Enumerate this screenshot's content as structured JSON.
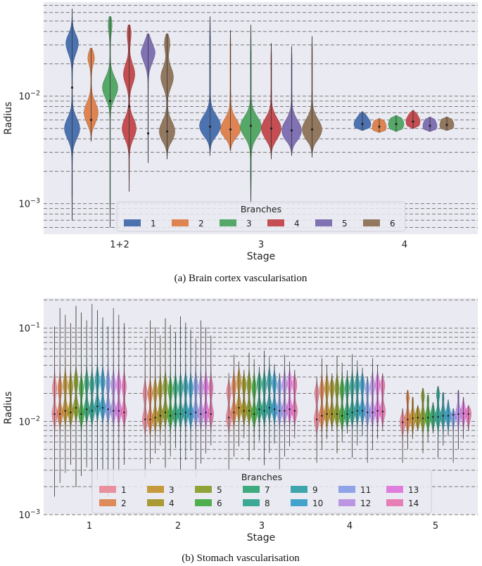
{
  "chart_data": [
    {
      "type": "violin",
      "caption": "(a) Brain cortex vascularisation",
      "xlabel": "Stage",
      "ylabel": "Radius",
      "yscale": "log",
      "ylim": [
        0.00052,
        0.075
      ],
      "yticks": [
        {
          "value": 0.001,
          "base": "10",
          "exp": "−3"
        },
        {
          "value": 0.01,
          "base": "10",
          "exp": "−2"
        }
      ],
      "grid": "horizontal-dashed",
      "categories": [
        "1+2",
        "3",
        "4"
      ],
      "legend": {
        "title": "Branches",
        "placement": "lower-center",
        "columns": 6
      },
      "series": [
        {
          "name": "1",
          "color": "#4c72b0",
          "values": [
            {
              "median": 0.012,
              "min": 0.0007,
              "max": 0.065,
              "modes": [
                0.031,
                0.005
              ]
            },
            {
              "median": 0.0052,
              "min": 0.0028,
              "max": 0.055,
              "modes": [
                0.0053
              ]
            },
            {
              "median": 0.0055,
              "min": 0.0048,
              "max": 0.0072,
              "modes": [
                0.0055
              ]
            }
          ]
        },
        {
          "name": "2",
          "color": "#dd8452",
          "values": [
            {
              "median": 0.006,
              "min": 0.0038,
              "max": 0.028,
              "modes": [
                0.027,
                0.007
              ]
            },
            {
              "median": 0.0049,
              "min": 0.0031,
              "max": 0.041,
              "modes": [
                0.0049
              ]
            },
            {
              "median": 0.0052,
              "min": 0.0046,
              "max": 0.0062,
              "modes": [
                0.0052
              ]
            }
          ]
        },
        {
          "name": "3",
          "color": "#55a868",
          "values": [
            {
              "median": 0.009,
              "min": 0.0006,
              "max": 0.055,
              "modes": [
                0.054,
                0.012
              ]
            },
            {
              "median": 0.0053,
              "min": 0.001,
              "max": 0.046,
              "modes": [
                0.0052
              ]
            },
            {
              "median": 0.0055,
              "min": 0.0047,
              "max": 0.0066,
              "modes": [
                0.0055
              ]
            }
          ]
        },
        {
          "name": "4",
          "color": "#c44e52",
          "values": [
            {
              "median": 0.008,
              "min": 0.0013,
              "max": 0.046,
              "modes": [
                0.045,
                0.016,
                0.005
              ]
            },
            {
              "median": 0.005,
              "min": 0.0026,
              "max": 0.031,
              "modes": [
                0.005
              ]
            },
            {
              "median": 0.0058,
              "min": 0.005,
              "max": 0.0074,
              "modes": [
                0.0058
              ]
            }
          ]
        },
        {
          "name": "5",
          "color": "#8172b3",
          "values": [
            {
              "median": 0.0045,
              "min": 0.0024,
              "max": 0.038,
              "modes": [
                0.037,
                0.025
              ]
            },
            {
              "median": 0.0048,
              "min": 0.0028,
              "max": 0.029,
              "modes": [
                0.0048
              ]
            },
            {
              "median": 0.0053,
              "min": 0.0047,
              "max": 0.0064,
              "modes": [
                0.0053
              ]
            }
          ]
        },
        {
          "name": "6",
          "color": "#937860",
          "values": [
            {
              "median": 0.0047,
              "min": 0.0026,
              "max": 0.038,
              "modes": [
                0.037,
                0.015,
                0.0047
              ]
            },
            {
              "median": 0.0049,
              "min": 0.0027,
              "max": 0.036,
              "modes": [
                0.0049
              ]
            },
            {
              "median": 0.0054,
              "min": 0.0048,
              "max": 0.0064,
              "modes": [
                0.0054
              ]
            }
          ]
        }
      ]
    },
    {
      "type": "violin",
      "caption": "(b) Stomach vascularisation",
      "xlabel": "Stage",
      "ylabel": "Radius",
      "yscale": "log",
      "ylim": [
        0.001,
        0.21
      ],
      "yticks": [
        {
          "value": 0.001,
          "base": "10",
          "exp": "−3"
        },
        {
          "value": 0.01,
          "base": "10",
          "exp": "−2"
        },
        {
          "value": 0.1,
          "base": "10",
          "exp": "−1"
        }
      ],
      "grid": "horizontal-dashed",
      "categories": [
        "1",
        "2",
        "3",
        "4",
        "5"
      ],
      "legend": {
        "title": "Branches",
        "placement": "lower-center",
        "columns": 7
      },
      "series": [
        {
          "name": "1",
          "color": "#e8909e",
          "stage_medians": [
            0.012,
            0.0105,
            0.011,
            0.0105,
            0.0098
          ]
        },
        {
          "name": "2",
          "color": "#de8a5a",
          "stage_medians": [
            0.012,
            0.0105,
            0.0125,
            0.0115,
            0.0105
          ]
        },
        {
          "name": "3",
          "color": "#c59a3c",
          "stage_medians": [
            0.013,
            0.011,
            0.014,
            0.012,
            0.0108
          ]
        },
        {
          "name": "4",
          "color": "#a99a36",
          "stage_medians": [
            0.0125,
            0.0115,
            0.013,
            0.012,
            0.011
          ]
        },
        {
          "name": "5",
          "color": "#8fa438",
          "stage_medians": [
            0.014,
            0.0125,
            0.013,
            0.012,
            0.0108
          ]
        },
        {
          "name": "6",
          "color": "#4fae4e",
          "stage_medians": [
            0.012,
            0.0115,
            0.012,
            0.0115,
            0.011
          ]
        },
        {
          "name": "7",
          "color": "#3dab7e",
          "stage_medians": [
            0.0135,
            0.012,
            0.0135,
            0.012,
            0.0112
          ]
        },
        {
          "name": "8",
          "color": "#3da896",
          "stage_medians": [
            0.013,
            0.012,
            0.013,
            0.0125,
            0.0112
          ]
        },
        {
          "name": "9",
          "color": "#3ea5ad",
          "stage_medians": [
            0.0145,
            0.0125,
            0.014,
            0.013,
            0.0115
          ]
        },
        {
          "name": "10",
          "color": "#44a3cc",
          "stage_medians": [
            0.014,
            0.012,
            0.0135,
            0.013,
            0.0115
          ]
        },
        {
          "name": "11",
          "color": "#8ea3e8",
          "stage_medians": [
            0.0135,
            0.0125,
            0.013,
            0.0125,
            0.0118
          ]
        },
        {
          "name": "12",
          "color": "#bb96e2",
          "stage_medians": [
            0.013,
            0.012,
            0.013,
            0.0125,
            0.012
          ]
        },
        {
          "name": "13",
          "color": "#e07ede",
          "stage_medians": [
            0.013,
            0.0125,
            0.0135,
            0.013,
            0.0122
          ]
        },
        {
          "name": "14",
          "color": "#e67fb5",
          "stage_medians": [
            0.0125,
            0.012,
            0.013,
            0.0128,
            0.012
          ]
        }
      ]
    }
  ]
}
